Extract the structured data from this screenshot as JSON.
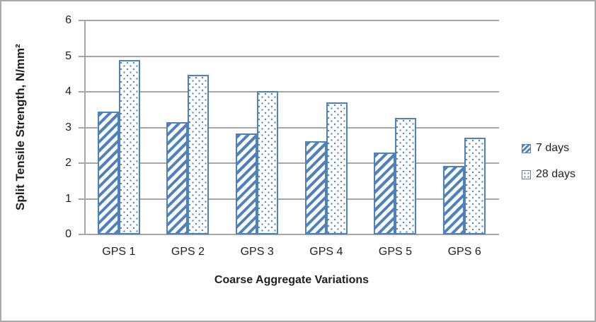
{
  "chart_data": {
    "type": "bar",
    "categories": [
      "GPS 1",
      "GPS 2",
      "GPS 3",
      "GPS 4",
      "GPS 5",
      "GPS 6"
    ],
    "series": [
      {
        "name": "7 days",
        "pattern": "diagonal-hatch",
        "values": [
          3.45,
          3.15,
          2.84,
          2.62,
          2.3,
          1.93
        ]
      },
      {
        "name": "28 days",
        "pattern": "dots",
        "values": [
          4.9,
          4.47,
          4.03,
          3.7,
          3.27,
          2.72
        ]
      }
    ],
    "xlabel": "Coarse Aggregate Variations",
    "ylabel": "Split Tensile Strength, N/mm²",
    "ylim": [
      0,
      6
    ],
    "yticks": [
      0,
      1,
      2,
      3,
      4,
      5,
      6
    ],
    "grid": true,
    "legend_position": "right"
  },
  "colors": {
    "series_blue": "#4F81BD",
    "gridline": "#A6A6A6",
    "axis": "#A6A6A6",
    "text": "#1F1F1F",
    "background": "#FFFFFF",
    "figure_border": "#A9A9A9"
  }
}
